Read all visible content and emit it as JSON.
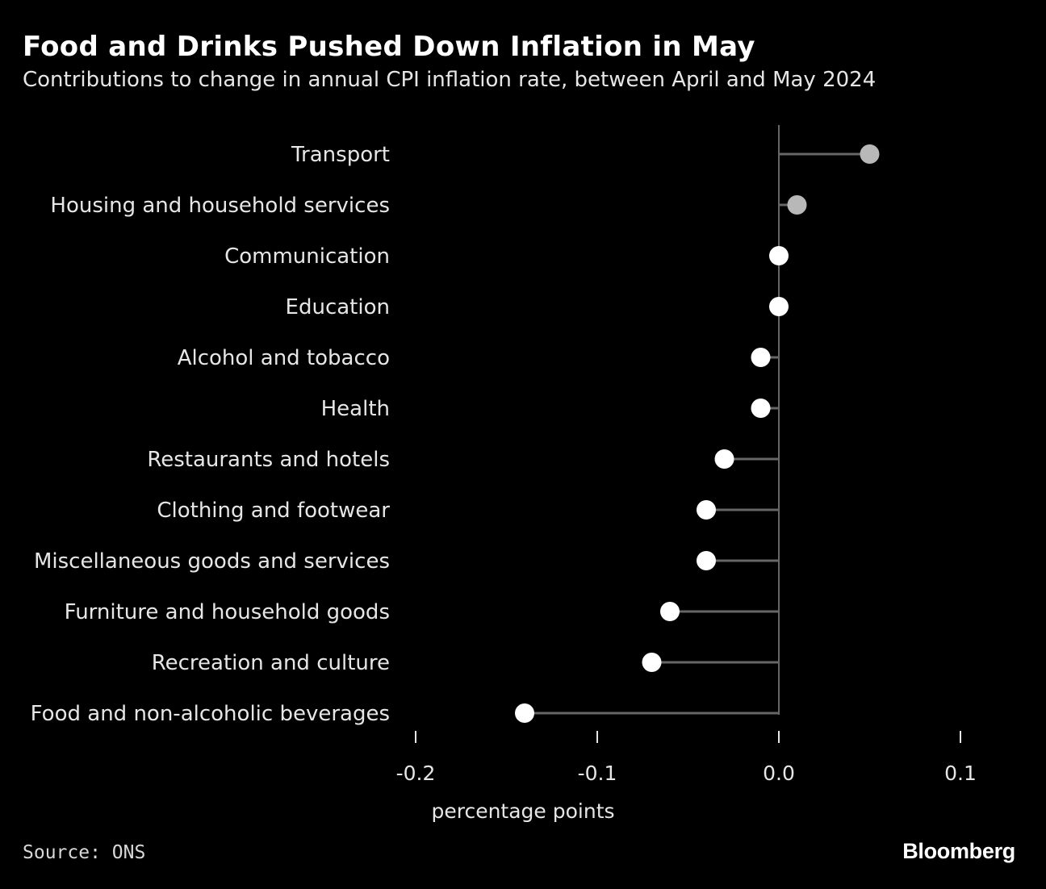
{
  "title": "Food and Drinks Pushed Down Inflation in May",
  "subtitle": "Contributions to change in annual CPI inflation rate, between April and May 2024",
  "source": "Source: ONS",
  "logo": "Bloomberg",
  "colors": {
    "background": "#000000",
    "positive_dot": "#b8b8b8",
    "negative_dot": "#ffffff",
    "stem": "#666666",
    "zero_line": "#666666"
  },
  "chart_data": {
    "type": "scatter",
    "orientation": "horizontal-lollipop",
    "categories": [
      "Transport",
      "Housing and household services",
      "Communication",
      "Education",
      "Alcohol and tobacco",
      "Health",
      "Restaurants and hotels",
      "Clothing and footwear",
      "Miscellaneous goods and services",
      "Furniture and household goods",
      "Recreation and culture",
      "Food and non-alcoholic beverages"
    ],
    "values": [
      0.05,
      0.01,
      0.0,
      0.0,
      -0.01,
      -0.01,
      -0.03,
      -0.04,
      -0.04,
      -0.06,
      -0.07,
      -0.14
    ],
    "xlabel": "percentage points",
    "ylabel": "",
    "xlim": [
      -0.2,
      0.1
    ],
    "xticks": [
      -0.2,
      -0.1,
      0.0,
      0.1
    ],
    "xtick_labels": [
      "-0.2",
      "-0.1",
      "0.0",
      "0.1"
    ],
    "grid": false,
    "legend": "none"
  }
}
